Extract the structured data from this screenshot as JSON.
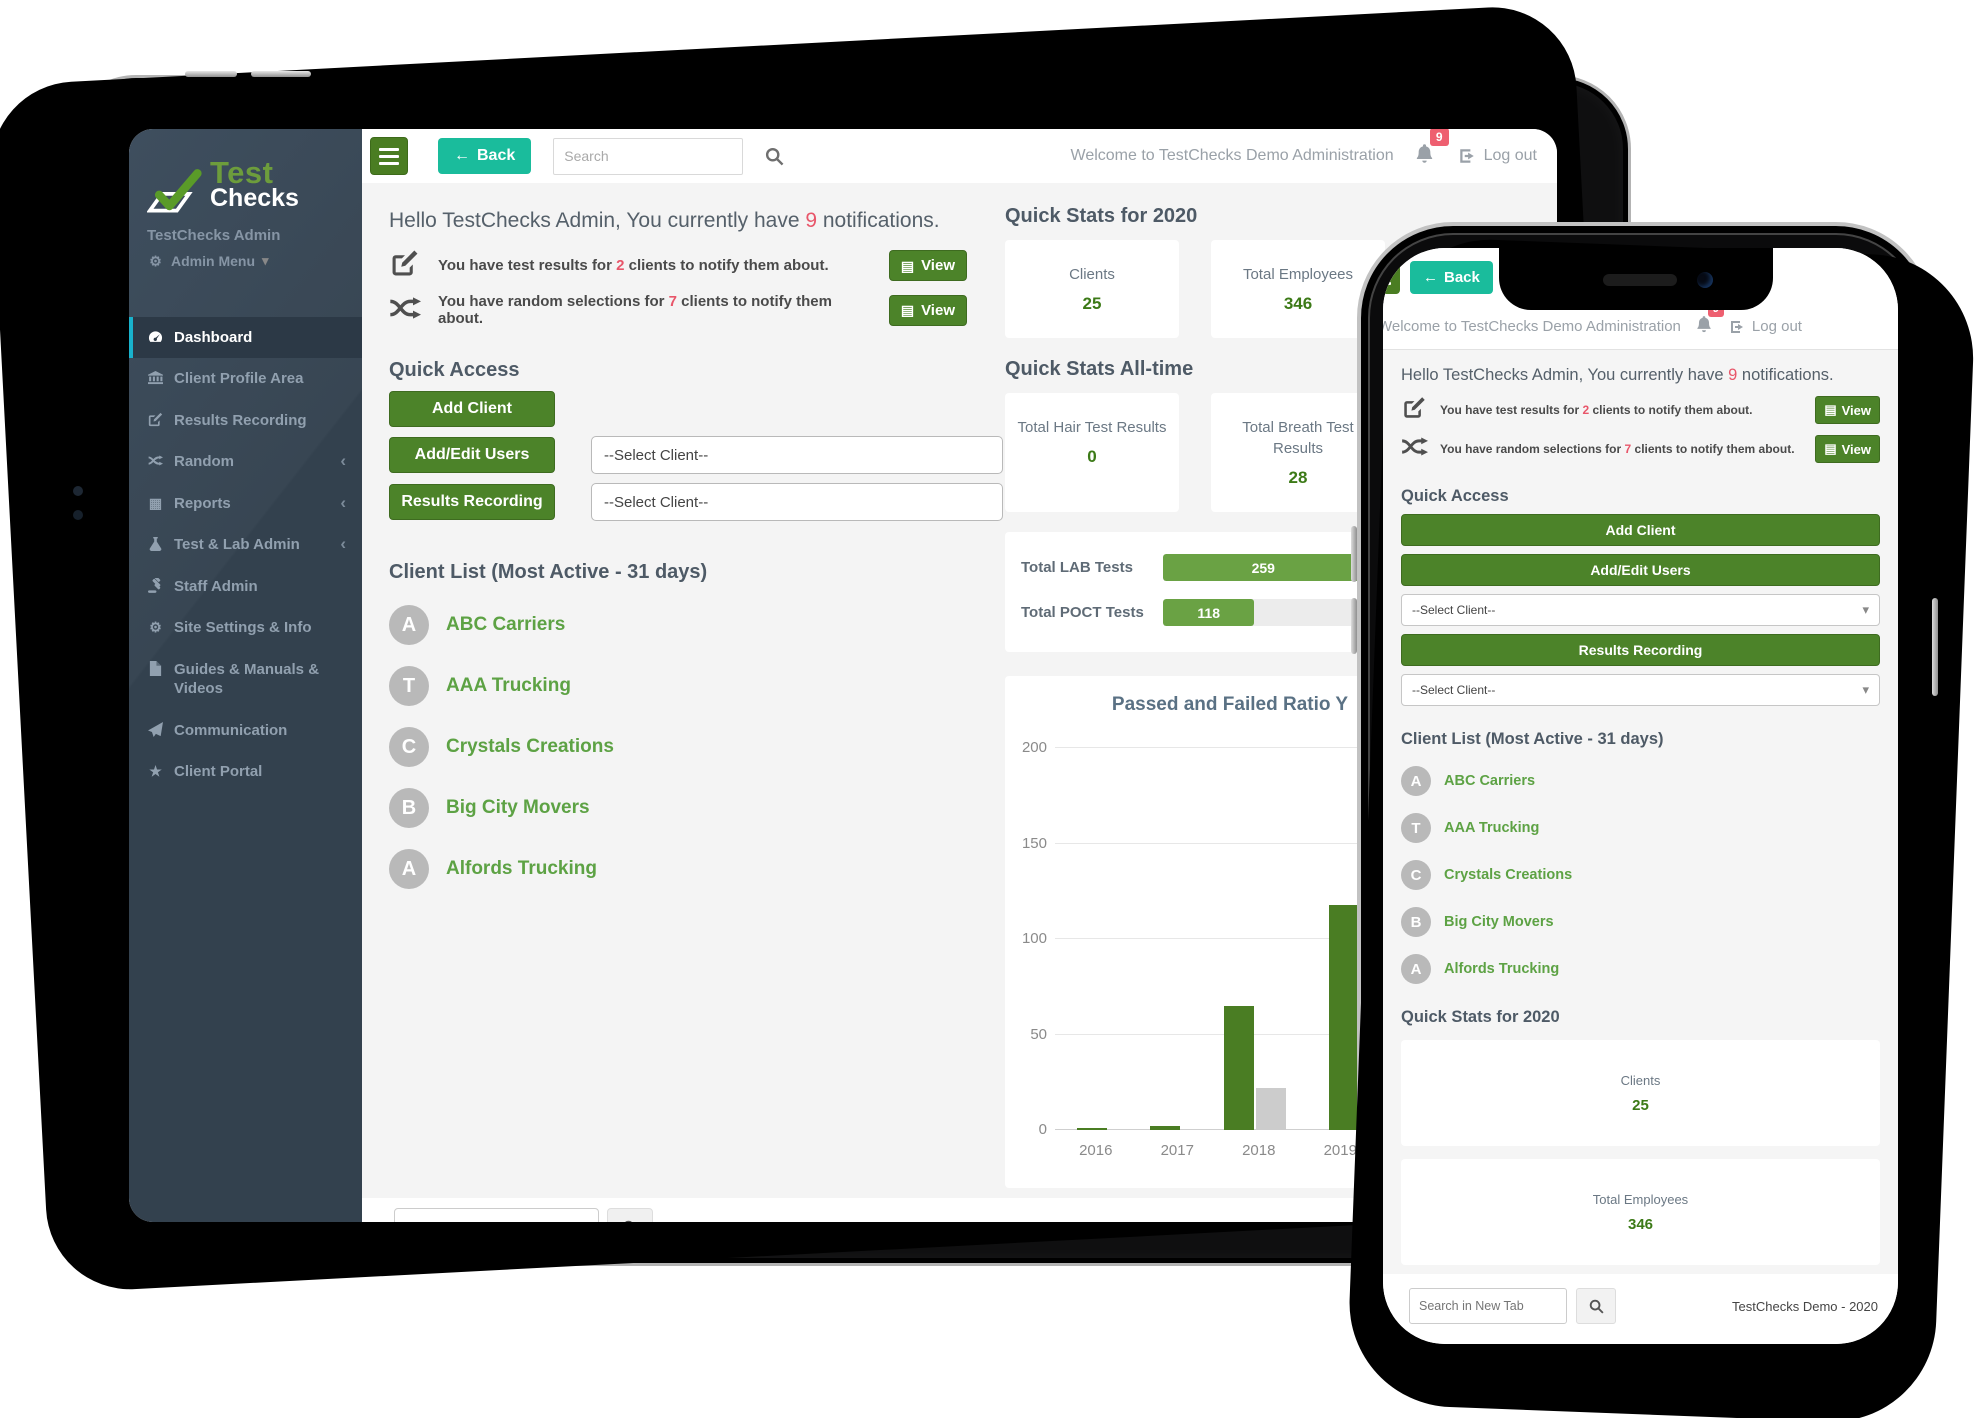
{
  "brand": {
    "logo_line1": "Test",
    "logo_line2": "Checks",
    "account_name": "TestChecks Admin",
    "menu_label": "Admin Menu"
  },
  "sidebar": {
    "items": [
      {
        "label": "Dashboard"
      },
      {
        "label": "Client Profile Area"
      },
      {
        "label": "Results Recording"
      },
      {
        "label": "Random"
      },
      {
        "label": "Reports"
      },
      {
        "label": "Test & Lab Admin"
      },
      {
        "label": "Staff Admin"
      },
      {
        "label": "Site Settings & Info"
      },
      {
        "label": "Guides & Manuals & Videos"
      },
      {
        "label": "Communication"
      },
      {
        "label": "Client Portal"
      }
    ]
  },
  "topbar": {
    "back_label": "Back",
    "search_placeholder": "Search",
    "welcome": "Welcome to TestChecks Demo Administration",
    "notification_count": "9",
    "logout_label": "Log out"
  },
  "main": {
    "hello": {
      "pre": "Hello TestChecks Admin, You currently have ",
      "count": "9",
      "post": " notifications."
    },
    "notifications": [
      {
        "pre": "You have test results for ",
        "count": "2",
        "post": " clients to notify them about.",
        "action": "View"
      },
      {
        "pre": "You have random selections for ",
        "count": "7",
        "post": " clients to notify them about.",
        "action": "View"
      }
    ],
    "quick_access": {
      "title": "Quick Access",
      "add_client": "Add Client",
      "add_edit_users": "Add/Edit Users",
      "results_recording": "Results Recording",
      "select_placeholder": "--Select Client--"
    },
    "client_list": {
      "title": "Client List (Most Active - 31 days)",
      "clients": [
        {
          "initial": "A",
          "name": "ABC Carriers"
        },
        {
          "initial": "T",
          "name": "AAA Trucking"
        },
        {
          "initial": "C",
          "name": "Crystals Creations"
        },
        {
          "initial": "B",
          "name": "Big City Movers"
        },
        {
          "initial": "A",
          "name": "Alfords Trucking"
        }
      ]
    },
    "quick_stats_2020": {
      "title": "Quick Stats for 2020",
      "stats": [
        {
          "label": "Clients",
          "value": "25"
        },
        {
          "label": "Total Employees",
          "value": "346"
        }
      ]
    },
    "quick_stats_alltime": {
      "title": "Quick Stats All-time",
      "stats": [
        {
          "label": "Total Hair Test Results",
          "value": "0"
        },
        {
          "label": "Total Breath Test Results",
          "value": "28"
        }
      ]
    },
    "progress_bars": [
      {
        "label": "Total LAB Tests",
        "value": 259,
        "max": 266
      },
      {
        "label": "Total POCT Tests",
        "value": 118,
        "max": 266
      }
    ]
  },
  "chart_data": {
    "type": "bar",
    "title": "Passed and Failed Ratio Y",
    "categories": [
      "2016",
      "2017",
      "2018",
      "2019"
    ],
    "series": [
      {
        "name": "Passed",
        "color": "#4a7d23",
        "values": [
          1,
          2,
          65,
          118
        ]
      },
      {
        "name": "Failed",
        "color": "#cccccc",
        "values": [
          0,
          0,
          22,
          null
        ]
      }
    ],
    "ylim": [
      0,
      200
    ],
    "yticks": [
      0,
      50,
      100,
      150,
      200
    ],
    "grid": true,
    "legend_visible": false
  },
  "footer": {
    "search_placeholder": "Search in New Tab",
    "copyright": "TestChecks Demo - 2020"
  },
  "colors": {
    "primary_green": "#4c8329",
    "teal": "#1abc9c",
    "accent_red": "#e8566a",
    "sidebar_navy": "#33414e",
    "active_tab_teal": "#19b2cc",
    "client_link_green": "#5da244",
    "stat_value_green": "#3c7a17"
  }
}
